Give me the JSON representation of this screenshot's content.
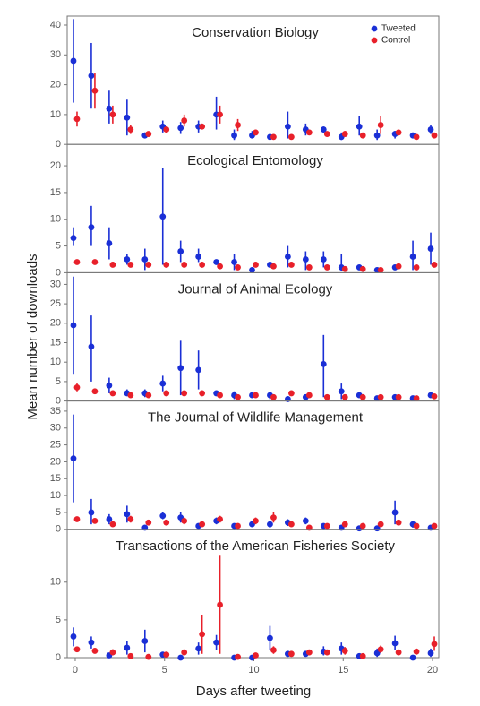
{
  "chart_data": [
    {
      "type": "scatter",
      "title": "Conservation Biology",
      "ylabel": "Mean number of downloads",
      "x": [
        0,
        1,
        2,
        3,
        4,
        5,
        6,
        7,
        8,
        9,
        10,
        11,
        12,
        13,
        14,
        15,
        16,
        17,
        18,
        19,
        20
      ],
      "xlim": [
        -0.45,
        20.35
      ],
      "ylim": [
        0,
        43
      ],
      "yticks": [
        0,
        10,
        20,
        30,
        40
      ],
      "legend": "upper right",
      "series": [
        {
          "name": "Tweeted",
          "color": "#1a2fd6",
          "values": [
            28,
            23,
            12,
            9,
            3,
            6,
            5.5,
            6,
            10,
            3,
            3,
            2.5,
            6,
            5,
            5,
            2.5,
            6,
            3,
            3.5,
            3,
            5
          ],
          "lower": [
            14,
            12,
            7,
            3,
            2,
            4,
            3.5,
            4,
            5,
            1.5,
            2,
            2,
            2,
            3,
            4,
            1.5,
            3,
            1.5,
            2,
            2,
            3.5
          ],
          "upper": [
            42,
            34,
            18,
            15,
            4,
            8,
            7.5,
            8,
            16,
            5,
            4.5,
            3,
            11,
            7,
            6,
            4,
            9.5,
            5,
            4.5,
            4,
            6.5
          ]
        },
        {
          "name": "Control",
          "color": "#e8202a",
          "values": [
            8.5,
            18,
            10,
            5,
            3.5,
            5,
            8,
            6,
            10,
            6.5,
            4,
            2.5,
            2.5,
            4,
            3.5,
            3.5,
            3,
            6.5,
            4,
            2.5,
            3
          ],
          "lower": [
            6,
            12,
            7,
            3.5,
            3,
            4,
            6,
            5,
            7,
            4.5,
            3,
            2,
            2,
            3.5,
            3,
            3,
            2.5,
            3.5,
            3,
            2,
            2.5
          ],
          "upper": [
            11,
            24,
            13,
            6.5,
            4,
            6,
            10,
            7,
            13,
            8.5,
            5,
            3,
            3,
            5,
            4,
            4.5,
            3.5,
            9.5,
            5,
            3,
            3.5
          ]
        }
      ]
    },
    {
      "type": "scatter",
      "title": "Ecological Entomology",
      "x": [
        0,
        1,
        2,
        3,
        4,
        5,
        6,
        7,
        8,
        9,
        10,
        11,
        12,
        13,
        14,
        15,
        16,
        17,
        18,
        19,
        20
      ],
      "xlim": [
        -0.45,
        20.35
      ],
      "ylim": [
        0,
        24
      ],
      "yticks": [
        0,
        5,
        10,
        15,
        20
      ],
      "series": [
        {
          "name": "Tweeted",
          "color": "#1a2fd6",
          "values": [
            6.5,
            8.5,
            5.5,
            2.5,
            2.5,
            10.5,
            4,
            3,
            2,
            2,
            0.5,
            1.5,
            3,
            2.5,
            2.5,
            1,
            1,
            0.5,
            1,
            3,
            4.5
          ],
          "lower": [
            5,
            5,
            2.5,
            1.5,
            0.5,
            1.5,
            2,
            2,
            1.5,
            0.5,
            0.3,
            1,
            1,
            0.5,
            1,
            0.3,
            0.8,
            0.3,
            0.8,
            0.5,
            1.5
          ],
          "upper": [
            8.5,
            12.5,
            8.5,
            3.5,
            4.5,
            19.5,
            6,
            4.5,
            2.5,
            3.5,
            0.7,
            2,
            5,
            4,
            4,
            3.5,
            1.2,
            0.7,
            1.5,
            6,
            7.5
          ]
        },
        {
          "name": "Control",
          "color": "#e8202a",
          "values": [
            2,
            2,
            1.5,
            1.5,
            1.5,
            1.5,
            1.5,
            1.5,
            1.2,
            1,
            1.5,
            1.2,
            1.5,
            1,
            1,
            0.7,
            0.7,
            0.5,
            1.2,
            1,
            1.5
          ],
          "lower": [
            1.5,
            1.5,
            1,
            1,
            1,
            1,
            1,
            1,
            0.9,
            0.8,
            1,
            0.9,
            1,
            0.8,
            0.8,
            0.5,
            0.5,
            0.3,
            0.9,
            0.8,
            1
          ],
          "upper": [
            2.5,
            2.5,
            2,
            2,
            2,
            2,
            2,
            2,
            1.5,
            1.2,
            2,
            1.5,
            2,
            1.2,
            1.2,
            0.9,
            0.9,
            0.7,
            1.5,
            1.2,
            2
          ]
        }
      ]
    },
    {
      "type": "scatter",
      "title": "Journal of Animal Ecology",
      "x": [
        0,
        1,
        2,
        3,
        4,
        5,
        6,
        7,
        8,
        9,
        10,
        11,
        12,
        13,
        14,
        15,
        16,
        17,
        18,
        19,
        20
      ],
      "xlim": [
        -0.45,
        20.35
      ],
      "ylim": [
        0,
        33
      ],
      "yticks": [
        0,
        5,
        10,
        15,
        20,
        25,
        30
      ],
      "series": [
        {
          "name": "Tweeted",
          "color": "#1a2fd6",
          "values": [
            19.5,
            14,
            4,
            2,
            2,
            4.5,
            8.5,
            8,
            2,
            1.5,
            1.5,
            1.5,
            0.5,
            1,
            9.5,
            2.5,
            1.5,
            0.7,
            1,
            0.7,
            1.5
          ],
          "lower": [
            7,
            5,
            2,
            1.5,
            1,
            2.5,
            1.5,
            3,
            1.5,
            0.5,
            1,
            0.5,
            0.2,
            0.5,
            1,
            0.5,
            1,
            0.5,
            0.7,
            0.5,
            1
          ],
          "upper": [
            32,
            22,
            6,
            3,
            3,
            6.5,
            15.5,
            13,
            2.5,
            2.5,
            2,
            2,
            0.8,
            1.5,
            17,
            4.5,
            2,
            1,
            1.5,
            1,
            2
          ]
        },
        {
          "name": "Control",
          "color": "#e8202a",
          "values": [
            3.5,
            2.5,
            2,
            1.5,
            1.5,
            2,
            2,
            2,
            1.5,
            1,
            1.5,
            1,
            2,
            1.5,
            1,
            1,
            1,
            1,
            1,
            0.7,
            1.2
          ],
          "lower": [
            2.5,
            2,
            1.5,
            1,
            1,
            1.5,
            1.5,
            1.5,
            1,
            0.7,
            1,
            0.7,
            1.5,
            1,
            0.7,
            0.7,
            0.7,
            0.7,
            0.7,
            0.5,
            0.9
          ],
          "upper": [
            4.5,
            3,
            2.5,
            2,
            2,
            2.5,
            2.5,
            2.5,
            2,
            1.3,
            2,
            1.3,
            2.5,
            2,
            1.3,
            1.3,
            1.3,
            1.3,
            1.3,
            0.9,
            1.5
          ]
        }
      ]
    },
    {
      "type": "scatter",
      "title": "The Journal of Wildlife Management",
      "x": [
        0,
        1,
        2,
        3,
        4,
        5,
        6,
        7,
        8,
        9,
        10,
        11,
        12,
        13,
        14,
        15,
        16,
        17,
        18,
        19,
        20
      ],
      "xlim": [
        -0.45,
        20.35
      ],
      "ylim": [
        0,
        38
      ],
      "yticks": [
        0,
        5,
        10,
        15,
        20,
        25,
        30,
        35
      ],
      "series": [
        {
          "name": "Tweeted",
          "color": "#1a2fd6",
          "values": [
            21,
            5,
            3,
            4.5,
            0.5,
            4,
            3.5,
            1,
            2.5,
            1,
            1.5,
            1.5,
            2,
            2.5,
            1,
            0.5,
            0.3,
            0.3,
            5,
            1.5,
            0.5
          ],
          "lower": [
            8,
            1.5,
            1.5,
            2,
            0.2,
            3,
            2,
            0.5,
            1.5,
            0.7,
            1,
            0.5,
            1,
            1.5,
            0.5,
            0.2,
            0.1,
            0.1,
            1.5,
            0.5,
            0.2
          ],
          "upper": [
            34,
            9,
            4.5,
            7,
            1,
            5,
            5,
            1.5,
            3.5,
            1.3,
            2,
            2.5,
            3,
            3.5,
            1.5,
            1,
            0.5,
            0.5,
            8.5,
            2.5,
            0.8
          ]
        },
        {
          "name": "Control",
          "color": "#e8202a",
          "values": [
            3,
            2.5,
            1.5,
            3,
            2,
            2,
            2.5,
            1.5,
            3,
            1,
            2.5,
            3.5,
            1.5,
            0.5,
            1,
            1.5,
            1,
            1.5,
            2,
            1,
            1
          ],
          "lower": [
            2.5,
            2,
            1,
            2,
            1.5,
            1.5,
            1.5,
            1,
            2,
            0.7,
            1.5,
            2,
            1,
            0.3,
            0.7,
            1,
            0.7,
            1,
            1.5,
            0.7,
            0.7
          ],
          "upper": [
            3.5,
            3,
            2,
            4,
            2.5,
            2.5,
            3.5,
            2,
            4,
            1.3,
            3.5,
            5,
            2,
            0.7,
            1.3,
            2,
            1.3,
            2,
            2.5,
            1.3,
            1.3
          ]
        }
      ]
    },
    {
      "type": "scatter",
      "title": "Transactions of the American Fisheries Society",
      "xlabel": "Days after tweeting",
      "x": [
        0,
        1,
        2,
        3,
        4,
        5,
        6,
        7,
        8,
        9,
        10,
        11,
        12,
        13,
        14,
        15,
        16,
        17,
        18,
        19,
        20
      ],
      "xlim": [
        -0.45,
        20.35
      ],
      "xticks": [
        0,
        5,
        10,
        15,
        20
      ],
      "ylim": [
        0,
        17
      ],
      "yticks": [
        0,
        5,
        10
      ],
      "series": [
        {
          "name": "Tweeted",
          "color": "#1a2fd6",
          "values": [
            2.8,
            2,
            0.3,
            1.3,
            2.2,
            0.4,
            0,
            1.2,
            2,
            0,
            0,
            2.6,
            0.5,
            0.5,
            0.8,
            1.2,
            0.2,
            0.6,
            1.9,
            0,
            0.6
          ],
          "lower": [
            1.5,
            1.2,
            0.1,
            0.4,
            0.7,
            0.2,
            0,
            0.4,
            1,
            0,
            0,
            1,
            0.3,
            0.3,
            0.3,
            0.4,
            0.1,
            0.1,
            1,
            0,
            0.1
          ],
          "upper": [
            4,
            2.8,
            0.5,
            2.2,
            3.7,
            0.6,
            0,
            2,
            3,
            0,
            0,
            4.2,
            0.7,
            0.7,
            1.5,
            2,
            0.3,
            1.2,
            2.9,
            0,
            1.2
          ]
        },
        {
          "name": "Control",
          "color": "#e8202a",
          "values": [
            1.1,
            0.9,
            0.7,
            0.2,
            0.1,
            0.4,
            0.7,
            3.1,
            7,
            0.1,
            0.3,
            1,
            0.5,
            0.7,
            0.7,
            0.9,
            0.2,
            1.1,
            0.7,
            0.8,
            1.8
          ],
          "lower": [
            0.8,
            0.6,
            0.3,
            0.1,
            0,
            0.2,
            0.3,
            0.5,
            0.5,
            0,
            0.1,
            0.5,
            0.3,
            0.3,
            0.3,
            0.4,
            0.1,
            0.6,
            0.3,
            0.4,
            0.9
          ],
          "upper": [
            1.4,
            1.2,
            1.1,
            0.3,
            0.2,
            0.6,
            1.1,
            5.7,
            13.5,
            0.2,
            0.5,
            1.5,
            0.7,
            1,
            1,
            1.4,
            0.3,
            1.6,
            1,
            1.2,
            2.8
          ]
        }
      ]
    }
  ]
}
